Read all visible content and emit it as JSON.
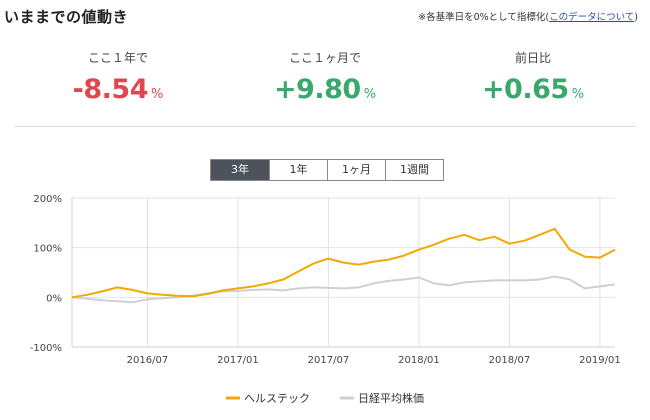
{
  "header": {
    "title": "いままでの値動き",
    "note_prefix": "※各基準日を0%として指標化(",
    "note_link": "このデータについて",
    "note_suffix": ")"
  },
  "stats": [
    {
      "label": "ここ１年で",
      "value": "-8.54",
      "unit": "%"
    },
    {
      "label": "ここ１ヶ月で",
      "value": "+9.80",
      "unit": "%"
    },
    {
      "label": "前日比",
      "value": "+0.65",
      "unit": "%"
    }
  ],
  "tabs": [
    {
      "label": "3年",
      "active": true
    },
    {
      "label": "1年",
      "active": false
    },
    {
      "label": "1ヶ月",
      "active": false
    },
    {
      "label": "1週間",
      "active": false
    }
  ],
  "colors": {
    "negative": "#e0464d",
    "positive": "#3aa86a",
    "series_fund": "#f2a900",
    "series_index": "#cfd0d6",
    "grid": "#e2e2e2"
  },
  "chart_data": {
    "type": "line",
    "ylim": [
      -100,
      200
    ],
    "y_ticks": [
      200,
      100,
      0,
      -100
    ],
    "y_tick_labels": [
      "200%",
      "100%",
      "0%",
      "-100%"
    ],
    "x_range": [
      "2016-02",
      "2019-02"
    ],
    "x_ticks": [
      "2016-07",
      "2017-01",
      "2017-07",
      "2018-01",
      "2018-07",
      "2019-01"
    ],
    "x_tick_labels": [
      "2016/07",
      "2017/01",
      "2017/07",
      "2018/01",
      "2018/07",
      "2019/01"
    ],
    "grid": true,
    "legend_position": "bottom",
    "series": [
      {
        "name": "ヘルステック",
        "color": "#f2a900",
        "x": [
          "2016-02",
          "2016-03",
          "2016-04",
          "2016-05",
          "2016-06",
          "2016-07",
          "2016-08",
          "2016-09",
          "2016-10",
          "2016-11",
          "2016-12",
          "2017-01",
          "2017-02",
          "2017-03",
          "2017-04",
          "2017-05",
          "2017-06",
          "2017-07",
          "2017-08",
          "2017-09",
          "2017-10",
          "2017-11",
          "2017-12",
          "2018-01",
          "2018-02",
          "2018-03",
          "2018-04",
          "2018-05",
          "2018-06",
          "2018-07",
          "2018-08",
          "2018-09",
          "2018-10",
          "2018-11",
          "2018-12",
          "2019-01",
          "2019-02"
        ],
        "values": [
          0,
          5,
          12,
          20,
          15,
          8,
          5,
          3,
          2,
          7,
          14,
          18,
          22,
          28,
          36,
          52,
          68,
          78,
          70,
          66,
          72,
          76,
          84,
          96,
          106,
          118,
          126,
          115,
          122,
          108,
          114,
          126,
          138,
          96,
          82,
          80,
          96
        ]
      },
      {
        "name": "日経平均株価",
        "color": "#cfd0d6",
        "x": [
          "2016-02",
          "2016-03",
          "2016-04",
          "2016-05",
          "2016-06",
          "2016-07",
          "2016-08",
          "2016-09",
          "2016-10",
          "2016-11",
          "2016-12",
          "2017-01",
          "2017-02",
          "2017-03",
          "2017-04",
          "2017-05",
          "2017-06",
          "2017-07",
          "2017-08",
          "2017-09",
          "2017-10",
          "2017-11",
          "2017-12",
          "2018-01",
          "2018-02",
          "2018-03",
          "2018-04",
          "2018-05",
          "2018-06",
          "2018-07",
          "2018-08",
          "2018-09",
          "2018-10",
          "2018-11",
          "2018-12",
          "2019-01",
          "2019-02"
        ],
        "values": [
          0,
          -3,
          -6,
          -8,
          -10,
          -4,
          -2,
          0,
          3,
          8,
          12,
          13,
          15,
          16,
          14,
          18,
          20,
          19,
          18,
          20,
          28,
          33,
          36,
          40,
          28,
          24,
          30,
          32,
          34,
          34,
          34,
          36,
          42,
          36,
          18,
          22,
          26
        ]
      }
    ]
  }
}
